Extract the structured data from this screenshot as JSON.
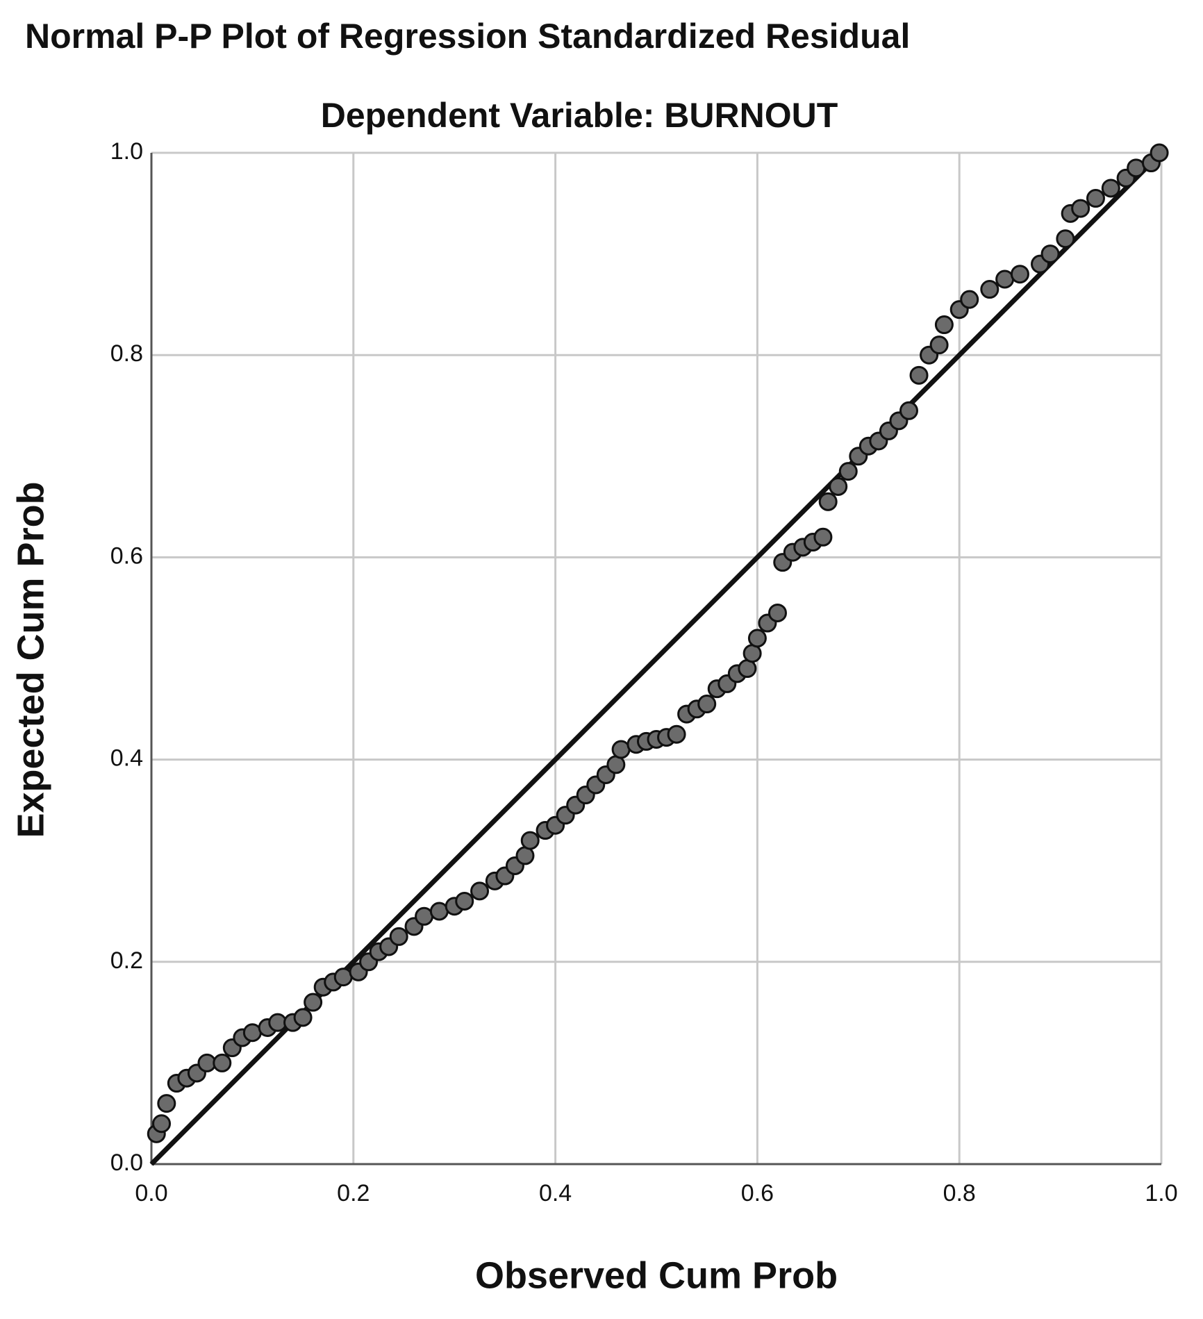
{
  "chart_data": {
    "type": "scatter",
    "title": "Normal P-P Plot of Regression Standardized Residual",
    "subtitle": "Dependent Variable: BURNOUT",
    "x_label": "Observed Cum Prob",
    "y_label": "Expected Cum Prob",
    "xlim": [
      0,
      1
    ],
    "ylim": [
      0,
      1
    ],
    "xticks": [
      {
        "value": 0,
        "label": "0.0"
      },
      0.2,
      0.4,
      0.6,
      0.8,
      {
        "value": 1,
        "label": "1.0"
      }
    ],
    "yticks": [
      {
        "value": 0,
        "label": "0.0"
      },
      0.2,
      0.4,
      0.6,
      0.8,
      {
        "value": 1,
        "label": "1.0"
      }
    ],
    "grid": true,
    "color": "#6b6b6b",
    "x": [
      0.005,
      0.01,
      0.015,
      0.025,
      0.035,
      0.045,
      0.055,
      0.07,
      0.08,
      0.09,
      0.1,
      0.115,
      0.125,
      0.14,
      0.15,
      0.16,
      0.17,
      0.18,
      0.19,
      0.205,
      0.215,
      0.225,
      0.235,
      0.245,
      0.26,
      0.27,
      0.285,
      0.3,
      0.31,
      0.325,
      0.34,
      0.35,
      0.36,
      0.37,
      0.375,
      0.39,
      0.4,
      0.41,
      0.42,
      0.43,
      0.44,
      0.45,
      0.46,
      0.465,
      0.48,
      0.49,
      0.5,
      0.51,
      0.52,
      0.53,
      0.54,
      0.55,
      0.56,
      0.57,
      0.58,
      0.59,
      0.595,
      0.6,
      0.61,
      0.62,
      0.625,
      0.635,
      0.645,
      0.655,
      0.665,
      0.67,
      0.68,
      0.69,
      0.7,
      0.71,
      0.72,
      0.73,
      0.74,
      0.75,
      0.76,
      0.77,
      0.78,
      0.785,
      0.8,
      0.81,
      0.83,
      0.845,
      0.86,
      0.88,
      0.89,
      0.905,
      0.91,
      0.92,
      0.935,
      0.95,
      0.965,
      0.975,
      0.99,
      0.998
    ],
    "values": [
      0.03,
      0.04,
      0.06,
      0.08,
      0.085,
      0.09,
      0.1,
      0.1,
      0.115,
      0.125,
      0.13,
      0.135,
      0.14,
      0.14,
      0.145,
      0.16,
      0.175,
      0.18,
      0.185,
      0.19,
      0.2,
      0.21,
      0.215,
      0.225,
      0.235,
      0.245,
      0.25,
      0.255,
      0.26,
      0.27,
      0.28,
      0.285,
      0.295,
      0.305,
      0.32,
      0.33,
      0.335,
      0.345,
      0.355,
      0.365,
      0.375,
      0.385,
      0.395,
      0.41,
      0.415,
      0.418,
      0.42,
      0.422,
      0.425,
      0.445,
      0.45,
      0.455,
      0.47,
      0.475,
      0.485,
      0.49,
      0.505,
      0.52,
      0.535,
      0.545,
      0.595,
      0.605,
      0.61,
      0.615,
      0.62,
      0.655,
      0.67,
      0.685,
      0.7,
      0.71,
      0.715,
      0.725,
      0.735,
      0.745,
      0.78,
      0.8,
      0.81,
      0.83,
      0.845,
      0.855,
      0.865,
      0.875,
      0.88,
      0.89,
      0.9,
      0.915,
      0.94,
      0.945,
      0.955,
      0.965,
      0.975,
      0.985,
      0.99,
      1.0
    ]
  }
}
